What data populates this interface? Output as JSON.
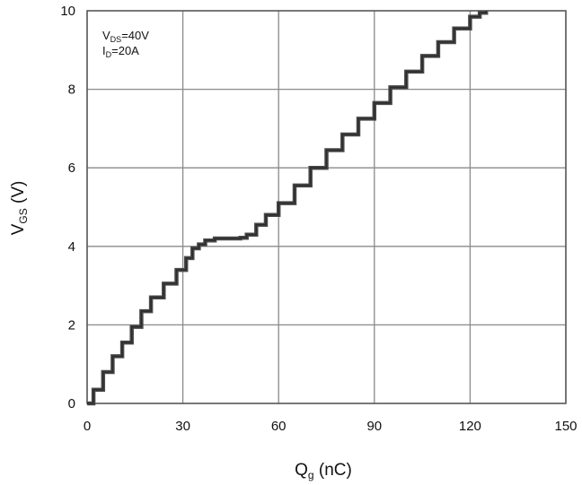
{
  "chart_data": {
    "type": "line",
    "title": "",
    "xlabel": {
      "main": "Q",
      "sub": "g",
      "rest": " (nC)"
    },
    "ylabel": {
      "main": "V",
      "sub": "GS",
      "rest": " (V)"
    },
    "xlim": [
      0,
      150
    ],
    "ylim": [
      0,
      10
    ],
    "xticks": [
      "0",
      "30",
      "60",
      "90",
      "120",
      "150"
    ],
    "yticks": [
      "0",
      "2",
      "4",
      "6",
      "8",
      "10"
    ],
    "grid": true,
    "annotations": [
      {
        "main": "V",
        "sub": "DS",
        "rest": "=40V"
      },
      {
        "main": "I",
        "sub": "D",
        "rest": "=20A"
      }
    ],
    "series": [
      {
        "x": [
          0,
          2,
          5,
          8,
          11,
          14,
          17,
          20,
          24,
          28,
          31,
          33,
          35,
          37,
          40,
          44,
          48,
          50,
          53,
          56,
          60,
          65,
          70,
          75,
          80,
          85,
          90,
          95,
          100,
          105,
          110,
          115,
          120,
          123,
          125
        ],
        "y": [
          0,
          0.35,
          0.8,
          1.2,
          1.55,
          1.95,
          2.35,
          2.7,
          3.05,
          3.4,
          3.7,
          3.95,
          4.05,
          4.15,
          4.2,
          4.2,
          4.22,
          4.3,
          4.55,
          4.8,
          5.1,
          5.55,
          6.0,
          6.45,
          6.85,
          7.25,
          7.65,
          8.05,
          8.45,
          8.85,
          9.2,
          9.55,
          9.85,
          9.95,
          10.0
        ]
      }
    ]
  }
}
